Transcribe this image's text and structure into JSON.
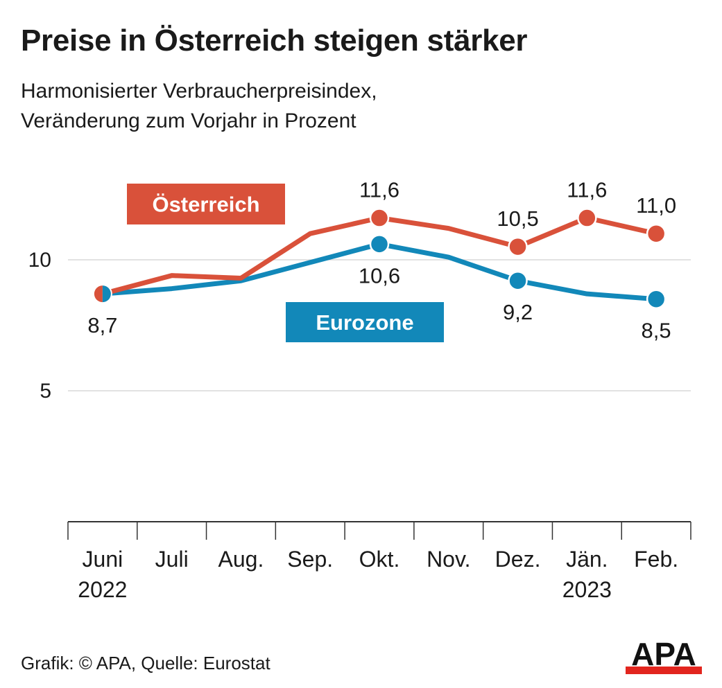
{
  "title": "Preise in Österreich steigen stärker",
  "subtitle_line1": "Harmonisierter Verbraucherpreisindex,",
  "subtitle_line2": "Veränderung zum Vorjahr in Prozent",
  "footer": "Grafik: © APA, Quelle: Eurostat",
  "logo_text": "APA",
  "colors": {
    "austria": "#d9513a",
    "eurozone": "#1288b9",
    "grid": "#d9d9d9",
    "axis": "#333333",
    "logo_red": "#e2251e"
  },
  "chart_data": {
    "type": "line",
    "categories": [
      "Juni",
      "Juli",
      "Aug.",
      "Sep.",
      "Okt.",
      "Nov.",
      "Dez.",
      "Jän.",
      "Feb."
    ],
    "category_years": [
      "2022",
      "",
      "",
      "",
      "",
      "",
      "",
      "2023",
      ""
    ],
    "y_ticks": [
      5,
      10
    ],
    "ylim": [
      0,
      13
    ],
    "grid": true,
    "series": [
      {
        "name": "Österreich",
        "color": "#d9513a",
        "values": [
          8.7,
          9.4,
          9.3,
          11.0,
          11.6,
          11.2,
          10.5,
          11.6,
          11.0
        ],
        "markers": [
          4,
          6,
          7,
          8
        ],
        "labels": [
          {
            "index": 4,
            "text": "11,6"
          },
          {
            "index": 6,
            "text": "10,5"
          },
          {
            "index": 7,
            "text": "11,6"
          },
          {
            "index": 8,
            "text": "11,0"
          }
        ]
      },
      {
        "name": "Eurozone",
        "color": "#1288b9",
        "values": [
          8.7,
          8.9,
          9.2,
          9.9,
          10.6,
          10.1,
          9.2,
          8.7,
          8.5
        ],
        "markers": [
          4,
          6,
          8
        ],
        "labels": [
          {
            "index": 0,
            "text": "8,7"
          },
          {
            "index": 4,
            "text": "10,6"
          },
          {
            "index": 6,
            "text": "9,2"
          },
          {
            "index": 8,
            "text": "8,5"
          }
        ]
      }
    ]
  }
}
